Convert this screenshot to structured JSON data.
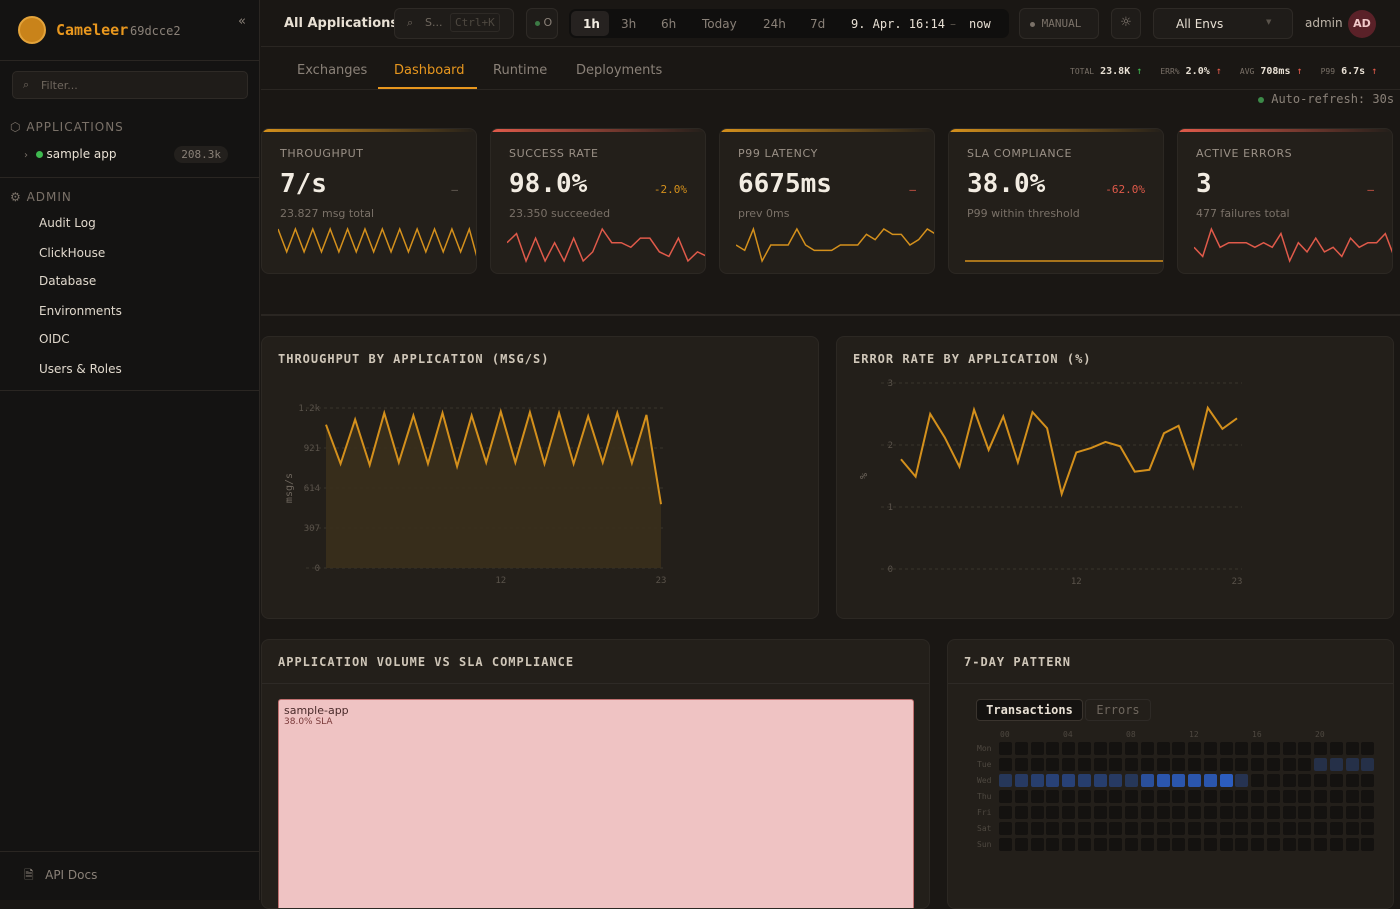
{
  "sidebar": {
    "brand": "Cameleer",
    "version": "69dcce2",
    "collapse": "«",
    "filter_placeholder": "Filter...",
    "applications_label": "APPLICATIONS",
    "apps": [
      {
        "name": "sample app",
        "count": "208.3k",
        "status": "healthy"
      }
    ],
    "admin_label": "ADMIN",
    "admin_items": [
      "Audit Log",
      "ClickHouse",
      "Database",
      "Environments",
      "OIDC",
      "Users & Roles"
    ],
    "footer_link": "API Docs"
  },
  "topbar": {
    "scope": "All Applications",
    "search_placeholder": "S...",
    "search_shortcut": "Ctrl+K",
    "status_short": "O",
    "time_ranges": [
      "1h",
      "3h",
      "6h",
      "Today",
      "24h",
      "7d"
    ],
    "active_range": "1h",
    "range_start": "9. Apr. 16:14",
    "range_sep": "–",
    "range_end": "now",
    "refresh_mode": "MANUAL",
    "env_select": "All Envs",
    "user": "admin",
    "avatar": "AD"
  },
  "tabs": {
    "items": [
      "Exchanges",
      "Dashboard",
      "Runtime",
      "Deployments"
    ],
    "active": "Dashboard"
  },
  "summary": {
    "total_label": "TOTAL",
    "total": "23.8K",
    "err_label": "ERR%",
    "err": "2.0%",
    "avg_label": "AVG",
    "avg": "708ms",
    "p99_label": "P99",
    "p99": "6.7s",
    "auto_refresh": "Auto-refresh: 30s"
  },
  "kpis": [
    {
      "label": "THROUGHPUT",
      "value": "7/s",
      "delta": "–",
      "sub": "23.827 msg total",
      "accent": "#d4901c",
      "line": "#d4901c",
      "spark": [
        7,
        2,
        7,
        2,
        7,
        2,
        7,
        2,
        7,
        2,
        7,
        2,
        7,
        2,
        7,
        2,
        7,
        2,
        7,
        2,
        7,
        2,
        7,
        0
      ]
    },
    {
      "label": "SUCCESS RATE",
      "value": "98.0%",
      "delta": "-2.0%",
      "sub": "23.350 succeeded",
      "accent": "#e05a4a",
      "line": "#e05a4a",
      "spark": [
        5,
        7,
        1,
        6,
        1,
        5,
        1,
        6,
        1,
        3,
        8,
        5,
        5,
        4,
        6,
        6,
        3,
        2,
        6,
        1,
        3,
        2
      ]
    },
    {
      "label": "P99 LATENCY",
      "value": "6675ms",
      "delta": "–",
      "sub": "prev 0ms",
      "accent": "#d4901c",
      "line": "#d4901c",
      "spark": [
        4,
        3,
        7,
        1,
        4,
        4,
        4,
        7,
        4,
        3,
        3,
        3,
        4,
        4,
        4,
        6,
        5,
        7,
        6,
        6,
        4,
        5,
        7,
        6
      ]
    },
    {
      "label": "SLA COMPLIANCE",
      "value": "38.0%",
      "delta": "-62.0%",
      "sub": "P99 within threshold",
      "accent": "#d4901c",
      "line": "#d4901c",
      "spark": [
        0,
        0
      ]
    },
    {
      "label": "ACTIVE ERRORS",
      "value": "3",
      "delta": "–",
      "sub": "477 failures total",
      "accent": "#e05a4a",
      "line": "#e05a4a",
      "spark": [
        4,
        2,
        8,
        4,
        5,
        5,
        5,
        4,
        5,
        4,
        7,
        1,
        5,
        3,
        6,
        3,
        4,
        2,
        6,
        4,
        5,
        5,
        7,
        2
      ]
    }
  ],
  "chart_data": [
    {
      "type": "area",
      "title": "THROUGHPUT BY APPLICATION (MSG/S)",
      "ylabel": "msg/s",
      "xlabel": "",
      "ylim": [
        0,
        1228
      ],
      "yticks": [
        "0",
        "307",
        "614",
        "921",
        "1.2k"
      ],
      "xticks": [
        "12",
        "23"
      ],
      "grid": true,
      "color": "#d4901c",
      "x": [
        0,
        1,
        2,
        3,
        4,
        5,
        6,
        7,
        8,
        9,
        10,
        11,
        12,
        13,
        14,
        15,
        16,
        17,
        18,
        19,
        20,
        21,
        22,
        23
      ],
      "values": [
        1100,
        800,
        1140,
        790,
        1190,
        810,
        1170,
        800,
        1190,
        780,
        1170,
        810,
        1200,
        810,
        1195,
        800,
        1190,
        800,
        1165,
        810,
        1190,
        805,
        1175,
        490
      ]
    },
    {
      "type": "line",
      "title": "ERROR RATE BY APPLICATION (%)",
      "ylabel": "%",
      "xlabel": "",
      "ylim": [
        0,
        3
      ],
      "yticks": [
        "0",
        "1",
        "2",
        "3"
      ],
      "xticks": [
        "12",
        "23"
      ],
      "grid": true,
      "color": "#d4901c",
      "x": [
        0,
        1,
        2,
        3,
        4,
        5,
        6,
        7,
        8,
        9,
        10,
        11,
        12,
        13,
        14,
        15,
        16,
        17,
        18,
        19,
        20,
        21,
        22,
        23
      ],
      "values": [
        1.77,
        1.49,
        2.5,
        2.12,
        1.65,
        2.57,
        1.92,
        2.46,
        1.72,
        2.53,
        2.27,
        1.21,
        1.88,
        1.95,
        2.05,
        1.98,
        1.57,
        1.6,
        2.19,
        2.31,
        1.64,
        2.6,
        2.26,
        2.43
      ]
    },
    {
      "type": "treemap",
      "title": "APPLICATION VOLUME VS SLA COMPLIANCE",
      "items": [
        {
          "name": "sample-app",
          "label": "38.0% SLA",
          "sla": 38.0,
          "color": "#efc3c3"
        }
      ]
    },
    {
      "type": "heatmap",
      "title": "7-DAY PATTERN",
      "toggle": [
        "Transactions",
        "Errors"
      ],
      "active_toggle": "Transactions",
      "rows": [
        "Mon",
        "Tue",
        "Wed",
        "Thu",
        "Fri",
        "Sat",
        "Sun"
      ],
      "col_labels": [
        "00",
        "04",
        "08",
        "12",
        "16",
        "20"
      ],
      "cells": [
        {
          "row": "Tue",
          "hours": [
            20,
            21,
            22,
            23
          ],
          "intensity": [
            0.25,
            0.25,
            0.25,
            0.25
          ]
        },
        {
          "row": "Wed",
          "hours": [
            0,
            1,
            2,
            3,
            4,
            5,
            6,
            7,
            8,
            9,
            10,
            11,
            12,
            13,
            14,
            15
          ],
          "intensity": [
            0.35,
            0.4,
            0.45,
            0.5,
            0.5,
            0.45,
            0.45,
            0.4,
            0.35,
            0.7,
            0.8,
            0.8,
            0.8,
            0.8,
            0.9,
            0.3
          ]
        }
      ]
    }
  ]
}
